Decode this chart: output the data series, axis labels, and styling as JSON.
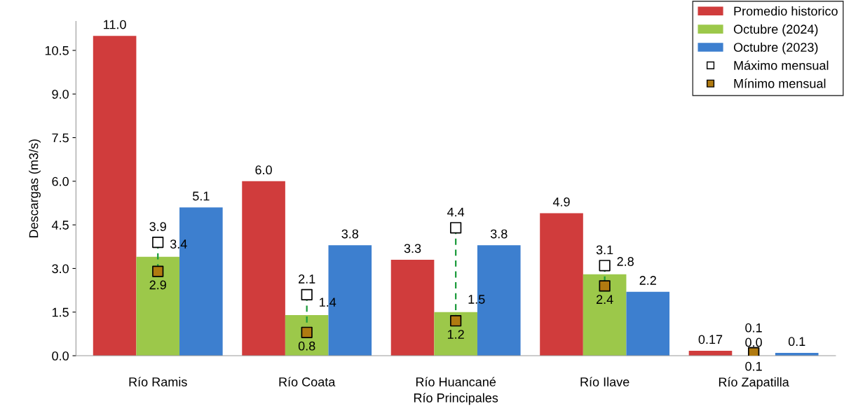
{
  "chart_data": {
    "type": "bar",
    "xlabel": "Río Principales",
    "ylabel": "Descargas (m3/s)",
    "categories": [
      "Río Ramis",
      "Río Coata",
      "Río Huancané",
      "Río Ilave",
      "Río Zapatilla"
    ],
    "series": [
      {
        "name": "Promedio historico",
        "color": "#d03c3c",
        "values": [
          11.0,
          6.0,
          3.3,
          4.9,
          0.17
        ],
        "value_labels": [
          "11.0",
          "6.0",
          "3.3",
          "4.9",
          "0.17"
        ]
      },
      {
        "name": "Octubre (2024)",
        "color": "#9cc84a",
        "values": [
          3.4,
          1.4,
          1.5,
          2.8,
          0.0
        ],
        "value_labels": [
          "3.4",
          "1.4",
          "1.5",
          "2.8",
          "0.0"
        ],
        "line_style": "dashed"
      },
      {
        "name": "Octubre (2023)",
        "color": "#3d7fcf",
        "values": [
          5.1,
          3.8,
          3.8,
          2.2,
          0.1
        ],
        "value_labels": [
          "5.1",
          "3.8",
          "3.8",
          "2.2",
          "0.1"
        ]
      },
      {
        "name": "Máximo mensual",
        "type": "scatter",
        "marker": "square",
        "color": "#ffffff",
        "x": [
          "Río Ramis",
          "Río Coata",
          "Río Huancané",
          "Río Ilave",
          "Río Zapatilla"
        ],
        "values": [
          3.9,
          2.1,
          4.4,
          3.1,
          0.1
        ],
        "value_labels": [
          "3.9",
          "2.1",
          "4.4",
          "3.1",
          "0.1"
        ]
      },
      {
        "name": "Mínimo mensual",
        "type": "scatter",
        "marker": "square",
        "color": "#b07a10",
        "x": [
          "Río Ramis",
          "Río Coata",
          "Río Huancané",
          "Río Ilave",
          "Río Zapatilla"
        ],
        "values": [
          2.9,
          0.8,
          1.2,
          2.4,
          0.1
        ],
        "value_labels": [
          "2.9",
          "0.8",
          "1.2",
          "2.4",
          "0.1"
        ]
      }
    ],
    "ylim": [
      0,
      11.5
    ],
    "yticks": [
      {
        "value": 0,
        "label": "0.0"
      },
      1.5,
      {
        "value": 3,
        "label": "3.0"
      },
      4.5,
      {
        "value": 6,
        "label": "6.0"
      },
      7.5,
      {
        "value": 9,
        "label": "9.0"
      },
      10.5
    ],
    "grid": false,
    "legend": "top right"
  }
}
